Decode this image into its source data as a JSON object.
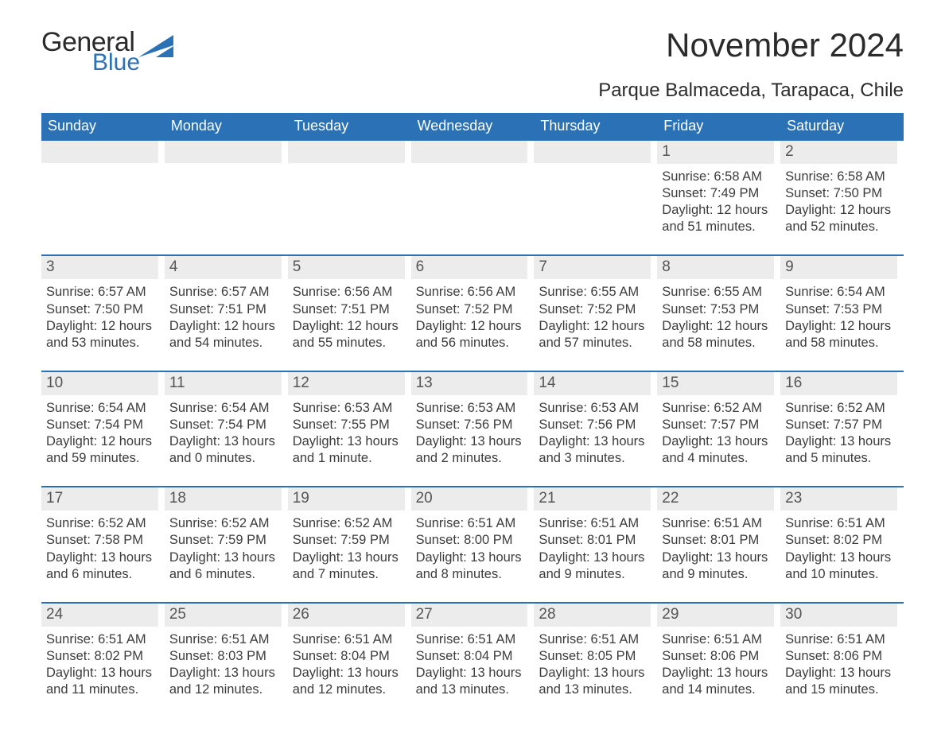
{
  "logo": {
    "text_general": "General",
    "text_blue": "Blue",
    "accent_color": "#2a72b5"
  },
  "title": "November 2024",
  "location": "Parque Balmaceda, Tarapaca, Chile",
  "colors": {
    "header_bg": "#2a72b5",
    "header_text": "#ffffff",
    "band_bg": "#ececec",
    "text": "#3a3a3a",
    "rule": "#2a72b5",
    "page_bg": "#ffffff"
  },
  "days_of_week": [
    "Sunday",
    "Monday",
    "Tuesday",
    "Wednesday",
    "Thursday",
    "Friday",
    "Saturday"
  ],
  "weeks": [
    [
      null,
      null,
      null,
      null,
      null,
      {
        "n": "1",
        "sunrise": "Sunrise: 6:58 AM",
        "sunset": "Sunset: 7:49 PM",
        "dl1": "Daylight: 12 hours",
        "dl2": "and 51 minutes."
      },
      {
        "n": "2",
        "sunrise": "Sunrise: 6:58 AM",
        "sunset": "Sunset: 7:50 PM",
        "dl1": "Daylight: 12 hours",
        "dl2": "and 52 minutes."
      }
    ],
    [
      {
        "n": "3",
        "sunrise": "Sunrise: 6:57 AM",
        "sunset": "Sunset: 7:50 PM",
        "dl1": "Daylight: 12 hours",
        "dl2": "and 53 minutes."
      },
      {
        "n": "4",
        "sunrise": "Sunrise: 6:57 AM",
        "sunset": "Sunset: 7:51 PM",
        "dl1": "Daylight: 12 hours",
        "dl2": "and 54 minutes."
      },
      {
        "n": "5",
        "sunrise": "Sunrise: 6:56 AM",
        "sunset": "Sunset: 7:51 PM",
        "dl1": "Daylight: 12 hours",
        "dl2": "and 55 minutes."
      },
      {
        "n": "6",
        "sunrise": "Sunrise: 6:56 AM",
        "sunset": "Sunset: 7:52 PM",
        "dl1": "Daylight: 12 hours",
        "dl2": "and 56 minutes."
      },
      {
        "n": "7",
        "sunrise": "Sunrise: 6:55 AM",
        "sunset": "Sunset: 7:52 PM",
        "dl1": "Daylight: 12 hours",
        "dl2": "and 57 minutes."
      },
      {
        "n": "8",
        "sunrise": "Sunrise: 6:55 AM",
        "sunset": "Sunset: 7:53 PM",
        "dl1": "Daylight: 12 hours",
        "dl2": "and 58 minutes."
      },
      {
        "n": "9",
        "sunrise": "Sunrise: 6:54 AM",
        "sunset": "Sunset: 7:53 PM",
        "dl1": "Daylight: 12 hours",
        "dl2": "and 58 minutes."
      }
    ],
    [
      {
        "n": "10",
        "sunrise": "Sunrise: 6:54 AM",
        "sunset": "Sunset: 7:54 PM",
        "dl1": "Daylight: 12 hours",
        "dl2": "and 59 minutes."
      },
      {
        "n": "11",
        "sunrise": "Sunrise: 6:54 AM",
        "sunset": "Sunset: 7:54 PM",
        "dl1": "Daylight: 13 hours",
        "dl2": "and 0 minutes."
      },
      {
        "n": "12",
        "sunrise": "Sunrise: 6:53 AM",
        "sunset": "Sunset: 7:55 PM",
        "dl1": "Daylight: 13 hours",
        "dl2": "and 1 minute."
      },
      {
        "n": "13",
        "sunrise": "Sunrise: 6:53 AM",
        "sunset": "Sunset: 7:56 PM",
        "dl1": "Daylight: 13 hours",
        "dl2": "and 2 minutes."
      },
      {
        "n": "14",
        "sunrise": "Sunrise: 6:53 AM",
        "sunset": "Sunset: 7:56 PM",
        "dl1": "Daylight: 13 hours",
        "dl2": "and 3 minutes."
      },
      {
        "n": "15",
        "sunrise": "Sunrise: 6:52 AM",
        "sunset": "Sunset: 7:57 PM",
        "dl1": "Daylight: 13 hours",
        "dl2": "and 4 minutes."
      },
      {
        "n": "16",
        "sunrise": "Sunrise: 6:52 AM",
        "sunset": "Sunset: 7:57 PM",
        "dl1": "Daylight: 13 hours",
        "dl2": "and 5 minutes."
      }
    ],
    [
      {
        "n": "17",
        "sunrise": "Sunrise: 6:52 AM",
        "sunset": "Sunset: 7:58 PM",
        "dl1": "Daylight: 13 hours",
        "dl2": "and 6 minutes."
      },
      {
        "n": "18",
        "sunrise": "Sunrise: 6:52 AM",
        "sunset": "Sunset: 7:59 PM",
        "dl1": "Daylight: 13 hours",
        "dl2": "and 6 minutes."
      },
      {
        "n": "19",
        "sunrise": "Sunrise: 6:52 AM",
        "sunset": "Sunset: 7:59 PM",
        "dl1": "Daylight: 13 hours",
        "dl2": "and 7 minutes."
      },
      {
        "n": "20",
        "sunrise": "Sunrise: 6:51 AM",
        "sunset": "Sunset: 8:00 PM",
        "dl1": "Daylight: 13 hours",
        "dl2": "and 8 minutes."
      },
      {
        "n": "21",
        "sunrise": "Sunrise: 6:51 AM",
        "sunset": "Sunset: 8:01 PM",
        "dl1": "Daylight: 13 hours",
        "dl2": "and 9 minutes."
      },
      {
        "n": "22",
        "sunrise": "Sunrise: 6:51 AM",
        "sunset": "Sunset: 8:01 PM",
        "dl1": "Daylight: 13 hours",
        "dl2": "and 9 minutes."
      },
      {
        "n": "23",
        "sunrise": "Sunrise: 6:51 AM",
        "sunset": "Sunset: 8:02 PM",
        "dl1": "Daylight: 13 hours",
        "dl2": "and 10 minutes."
      }
    ],
    [
      {
        "n": "24",
        "sunrise": "Sunrise: 6:51 AM",
        "sunset": "Sunset: 8:02 PM",
        "dl1": "Daylight: 13 hours",
        "dl2": "and 11 minutes."
      },
      {
        "n": "25",
        "sunrise": "Sunrise: 6:51 AM",
        "sunset": "Sunset: 8:03 PM",
        "dl1": "Daylight: 13 hours",
        "dl2": "and 12 minutes."
      },
      {
        "n": "26",
        "sunrise": "Sunrise: 6:51 AM",
        "sunset": "Sunset: 8:04 PM",
        "dl1": "Daylight: 13 hours",
        "dl2": "and 12 minutes."
      },
      {
        "n": "27",
        "sunrise": "Sunrise: 6:51 AM",
        "sunset": "Sunset: 8:04 PM",
        "dl1": "Daylight: 13 hours",
        "dl2": "and 13 minutes."
      },
      {
        "n": "28",
        "sunrise": "Sunrise: 6:51 AM",
        "sunset": "Sunset: 8:05 PM",
        "dl1": "Daylight: 13 hours",
        "dl2": "and 13 minutes."
      },
      {
        "n": "29",
        "sunrise": "Sunrise: 6:51 AM",
        "sunset": "Sunset: 8:06 PM",
        "dl1": "Daylight: 13 hours",
        "dl2": "and 14 minutes."
      },
      {
        "n": "30",
        "sunrise": "Sunrise: 6:51 AM",
        "sunset": "Sunset: 8:06 PM",
        "dl1": "Daylight: 13 hours",
        "dl2": "and 15 minutes."
      }
    ]
  ]
}
